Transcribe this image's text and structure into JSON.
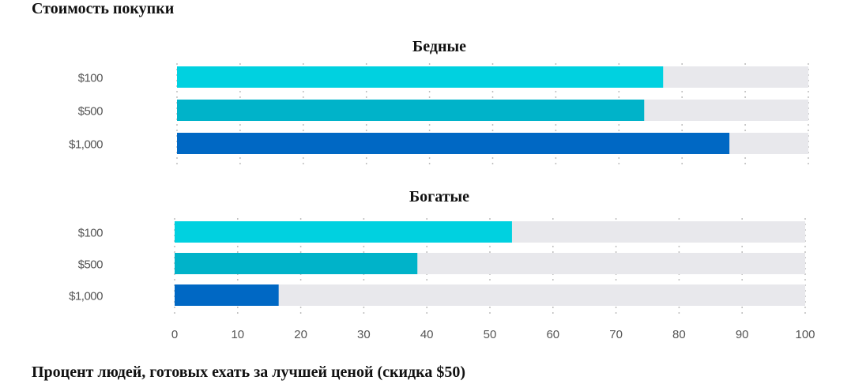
{
  "chart_data": {
    "type": "bar",
    "orientation": "horizontal",
    "title": "Стоимость покупки",
    "xlabel": "Процент людей, готовых ехать за лучшей ценой (скидка $50)",
    "xlim": [
      0,
      100
    ],
    "xticks": [
      "0",
      "10",
      "20",
      "30",
      "40",
      "50",
      "60",
      "70",
      "80",
      "90",
      "100"
    ],
    "categories": [
      "$100",
      "$500",
      "$1,000"
    ],
    "colors": [
      "#00d1e0",
      "#00b3c9",
      "#0068c4"
    ],
    "track_color": "#e8e8ec",
    "grid": true,
    "panels": [
      {
        "title": "Бедные",
        "values": [
          77,
          74,
          87.5
        ]
      },
      {
        "title": "Богатые",
        "values": [
          53.5,
          38.5,
          16.5
        ]
      }
    ]
  }
}
